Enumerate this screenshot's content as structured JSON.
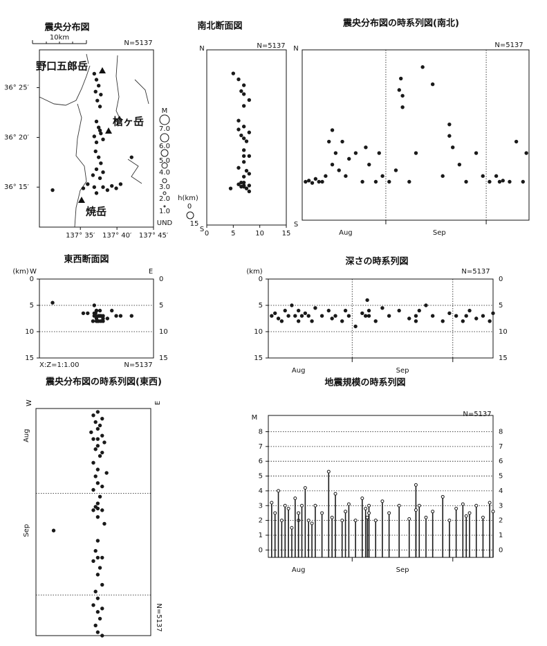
{
  "chart_data": [
    {
      "type": "scatter",
      "title": "震央分布図",
      "annotation": "N=5137",
      "scale_label": "10km",
      "peaks": [
        "野口五郎岳",
        "槍ヶ岳",
        "焼岳"
      ],
      "magnitude_legend": {
        "title": "M",
        "labels": [
          "7.0",
          "6.0",
          "5.0",
          "4.0",
          "3.0",
          "2.0",
          "1.0",
          "UND"
        ]
      },
      "xlim": [
        137.49,
        137.75
      ],
      "xticks": [
        {
          "value": 137.5833,
          "label": "137° 35′"
        },
        {
          "value": 137.6667,
          "label": "137° 40′"
        },
        {
          "value": 137.75,
          "label": "137° 45′"
        }
      ],
      "ylim": [
        36.183,
        36.48
      ],
      "yticks": [
        {
          "value": 36.4167,
          "label": "36° 25′"
        },
        {
          "value": 36.3333,
          "label": "36° 20′"
        },
        {
          "value": 36.25,
          "label": "36° 15′"
        }
      ],
      "x": [
        137.62,
        137.625,
        137.618,
        137.63,
        137.622,
        137.615,
        137.628,
        137.62,
        137.625,
        137.63,
        137.615,
        137.635,
        137.62,
        137.628,
        137.618,
        137.625,
        137.63,
        137.62,
        137.635,
        137.612,
        137.628,
        137.6,
        137.615,
        137.635,
        137.655,
        137.675,
        137.645,
        137.62,
        137.59,
        137.665,
        137.52,
        137.7
      ],
      "y": [
        36.43,
        36.42,
        36.41,
        36.405,
        36.395,
        36.44,
        36.385,
        36.36,
        36.35,
        36.34,
        36.335,
        36.33,
        36.325,
        36.345,
        36.31,
        36.3,
        36.29,
        36.28,
        36.275,
        36.27,
        36.265,
        36.255,
        36.25,
        36.25,
        36.252,
        36.255,
        36.245,
        36.24,
        36.248,
        36.248,
        36.245,
        36.3
      ],
      "color": "#1a1a1a"
    },
    {
      "type": "scatter",
      "title": "南北断面図",
      "annotation": "N=5137",
      "top_label": "N",
      "bottom_label": "S",
      "depth_legend": {
        "title": "h(km)",
        "labels": [
          0,
          15
        ]
      },
      "xlim": [
        0,
        15
      ],
      "xticks": [
        0,
        5,
        10,
        15
      ],
      "ylim": [
        36.183,
        36.48
      ],
      "x": [
        6,
        7,
        6.5,
        7,
        8,
        5,
        7,
        6,
        7,
        8,
        6.5,
        7,
        7.5,
        6,
        7,
        8,
        7,
        6,
        7.5,
        8,
        7,
        6.5,
        7,
        8,
        6,
        7,
        7.5,
        8,
        6.5,
        7,
        4.5,
        7
      ],
      "y": [
        36.43,
        36.42,
        36.41,
        36.405,
        36.395,
        36.44,
        36.385,
        36.36,
        36.35,
        36.34,
        36.335,
        36.33,
        36.325,
        36.345,
        36.31,
        36.3,
        36.29,
        36.28,
        36.275,
        36.27,
        36.265,
        36.255,
        36.25,
        36.25,
        36.252,
        36.255,
        36.245,
        36.24,
        36.248,
        36.248,
        36.245,
        36.3
      ],
      "color": "#1a1a1a"
    },
    {
      "type": "scatter",
      "title": "震央分布図の時系列図(南北)",
      "annotation": "N=5137",
      "top_label": "N",
      "bottom_label": "S",
      "time_axis": "x",
      "boundary_style": "dashed",
      "xlim": [
        6,
        73.8
      ],
      "month_boundaries": [
        31,
        61
      ],
      "month_labels": [
        {
          "value": 19,
          "label": "Aug"
        },
        {
          "value": 47,
          "label": "Sep"
        }
      ],
      "ylim": [
        36.183,
        36.48
      ],
      "x": [
        7,
        8,
        9,
        10,
        11,
        12,
        13,
        14,
        15,
        15,
        16,
        17,
        18,
        19,
        20,
        22,
        24,
        25,
        26,
        28,
        29,
        30,
        32,
        34,
        35,
        35.5,
        36,
        36,
        38,
        40,
        42,
        45,
        48,
        50,
        50,
        51,
        53,
        55,
        58,
        60,
        62,
        64,
        65,
        66,
        68,
        70,
        72,
        73
      ],
      "y": [
        36.25,
        36.252,
        36.248,
        36.255,
        36.25,
        36.25,
        36.26,
        36.32,
        36.34,
        36.28,
        36.3,
        36.27,
        36.32,
        36.26,
        36.29,
        36.3,
        36.25,
        36.31,
        36.28,
        36.25,
        36.3,
        36.26,
        36.25,
        36.27,
        36.41,
        36.43,
        36.4,
        36.38,
        36.25,
        36.3,
        36.45,
        36.42,
        36.26,
        36.33,
        36.35,
        36.31,
        36.28,
        36.25,
        36.3,
        36.26,
        36.25,
        36.26,
        36.25,
        36.252,
        36.25,
        36.32,
        36.25,
        36.3
      ],
      "color": "#1a1a1a"
    },
    {
      "type": "scatter",
      "title": "東西断面図",
      "annotation": "N=5137",
      "left_label": "W",
      "right_label": "E",
      "unit": "(km)",
      "ratio_label": "X:Z=1:1.00",
      "xlim": [
        137.49,
        137.75
      ],
      "ylim": [
        0,
        15
      ],
      "yreverse": true,
      "yticks": [
        0,
        5,
        10,
        15
      ],
      "yticks_both": true,
      "grid": true,
      "x": [
        137.62,
        137.625,
        137.618,
        137.63,
        137.622,
        137.615,
        137.628,
        137.62,
        137.625,
        137.63,
        137.615,
        137.635,
        137.62,
        137.628,
        137.618,
        137.625,
        137.63,
        137.62,
        137.635,
        137.612,
        137.628,
        137.6,
        137.615,
        137.635,
        137.655,
        137.675,
        137.645,
        137.62,
        137.59,
        137.665,
        137.52,
        137.7
      ],
      "y": [
        6,
        7,
        6.5,
        7,
        8,
        5,
        7,
        6,
        7,
        8,
        6.5,
        7,
        7.5,
        6,
        7,
        8,
        7,
        6,
        7.5,
        8,
        7,
        6.5,
        7,
        8,
        6,
        7,
        7.5,
        8,
        6.5,
        7,
        4.5,
        7
      ],
      "color": "#1a1a1a"
    },
    {
      "type": "scatter",
      "title": "深さの時系列図",
      "annotation": "N=5137",
      "unit": "(km)",
      "time_axis": "x",
      "boundary_style": "dashed",
      "xlim": [
        6,
        73
      ],
      "month_boundaries": [
        31,
        61
      ],
      "month_labels": [
        {
          "value": 15,
          "label": "Aug"
        },
        {
          "value": 46,
          "label": "Sep"
        }
      ],
      "ylim": [
        0,
        15
      ],
      "yreverse": true,
      "yticks": [
        0,
        5,
        10,
        15
      ],
      "yticks_both": true,
      "grid": true,
      "x": [
        7,
        8,
        9,
        10,
        11,
        12,
        13,
        14,
        15,
        15,
        16,
        17,
        18,
        19,
        20,
        22,
        24,
        25,
        26,
        28,
        29,
        30,
        32,
        34,
        35,
        35.5,
        36,
        36,
        38,
        40,
        42,
        45,
        48,
        50,
        50,
        51,
        53,
        55,
        58,
        60,
        62,
        64,
        65,
        66,
        68,
        70,
        72,
        73
      ],
      "y": [
        7,
        6.5,
        7.5,
        8,
        6,
        7,
        5,
        7,
        6,
        8,
        7,
        6.5,
        7,
        8,
        5.5,
        7,
        6,
        7.5,
        7,
        8,
        6,
        7,
        9,
        6.5,
        7,
        4,
        6,
        7,
        8,
        5.5,
        7,
        6,
        7.5,
        7,
        8,
        6,
        5,
        7,
        8,
        6.5,
        7,
        8,
        7,
        6,
        7.5,
        7,
        8,
        6.5
      ],
      "color": "#1a1a1a"
    },
    {
      "type": "scatter",
      "title": "震央分布図の時系列図(東西)",
      "annotation": "N=5137",
      "left_label": "W",
      "right_label": "E",
      "time_axis": "y",
      "boundary_style": "dashed",
      "xlim": [
        137.49,
        137.75
      ],
      "ylim": [
        6,
        73
      ],
      "yreverse": true,
      "month_boundaries": [
        31,
        61
      ],
      "month_labels": [
        {
          "value": 14,
          "label": "Aug"
        },
        {
          "value": 42,
          "label": "Sep"
        }
      ],
      "x": [
        137.63,
        137.62,
        137.64,
        137.625,
        137.635,
        137.63,
        137.615,
        137.64,
        137.63,
        137.62,
        137.645,
        137.63,
        137.625,
        137.64,
        137.635,
        137.62,
        137.63,
        137.65,
        137.625,
        137.63,
        137.64,
        137.62,
        137.635,
        137.63,
        137.625,
        137.63,
        137.64,
        137.62,
        137.63,
        137.645,
        137.53,
        137.63,
        137.625,
        137.64,
        137.63,
        137.62,
        137.635,
        137.63,
        137.64,
        137.625,
        137.63,
        137.62,
        137.64,
        137.63,
        137.635,
        137.625,
        137.63,
        137.64
      ],
      "y": [
        7,
        8,
        9,
        10,
        11,
        12,
        13,
        14,
        15,
        15,
        16,
        17,
        18,
        19,
        20,
        22,
        24,
        25,
        26,
        28,
        29,
        30,
        32,
        34,
        35,
        35.5,
        36,
        36,
        38,
        40,
        42,
        45,
        48,
        50,
        50,
        51,
        53,
        55,
        58,
        60,
        62,
        64,
        65,
        66,
        68,
        70,
        72,
        73
      ],
      "color": "#1a1a1a"
    },
    {
      "type": "stem",
      "title": "地震規模の時系列図",
      "annotation": "N=5137",
      "ylabel": "M",
      "time_axis": "x",
      "boundary_style": "tick",
      "xlim": [
        6,
        73
      ],
      "month_boundaries": [
        31,
        61
      ],
      "month_labels": [
        {
          "value": 15,
          "label": "Aug"
        },
        {
          "value": 46,
          "label": "Sep"
        }
      ],
      "ylim": [
        -0.5,
        9.1
      ],
      "yticks": [
        0,
        1,
        2,
        3,
        4,
        5,
        6,
        7,
        8
      ],
      "yticks_both": true,
      "grid": true,
      "x": [
        7,
        8,
        9,
        10,
        11,
        12,
        13,
        14,
        15,
        15,
        16,
        17,
        18,
        19,
        20,
        22,
        24,
        25,
        26,
        28,
        29,
        30,
        32,
        34,
        35,
        35.5,
        36,
        36,
        38,
        40,
        42,
        45,
        48,
        50,
        50,
        51,
        53,
        55,
        58,
        60,
        62,
        64,
        65,
        66,
        68,
        70,
        72,
        73
      ],
      "values": [
        3.2,
        2.5,
        4,
        2,
        3,
        2.8,
        1.5,
        3.5,
        2,
        2.5,
        3,
        4.2,
        2,
        1.8,
        3,
        2.5,
        5.3,
        2.2,
        3.8,
        2,
        2.6,
        3.1,
        2,
        3.5,
        2.8,
        2.2,
        3,
        2.5,
        2,
        3.3,
        2.5,
        3,
        2.1,
        4.4,
        2.7,
        3,
        2.2,
        2.6,
        3.6,
        2,
        2.8,
        3.1,
        2.3,
        2.5,
        3,
        2.2,
        3.2,
        2.6
      ],
      "color": "#1a1a1a"
    }
  ]
}
